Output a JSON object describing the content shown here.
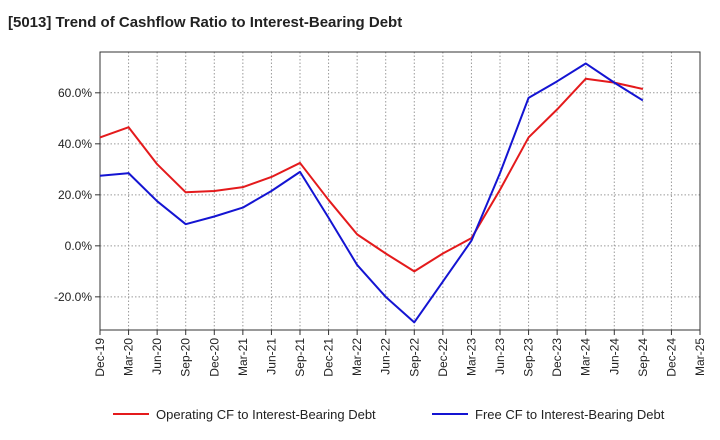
{
  "chart_data": {
    "type": "line",
    "title": "[5013]  Trend of Cashflow Ratio to Interest-Bearing Debt",
    "xlabel": "",
    "ylabel": "",
    "categories": [
      "Dec-19",
      "Mar-20",
      "Jun-20",
      "Sep-20",
      "Dec-20",
      "Mar-21",
      "Jun-21",
      "Sep-21",
      "Dec-21",
      "Mar-22",
      "Jun-22",
      "Sep-22",
      "Dec-22",
      "Mar-23",
      "Jun-23",
      "Sep-23",
      "Dec-23",
      "Mar-24",
      "Jun-24",
      "Sep-24",
      "Dec-24",
      "Mar-25"
    ],
    "ylim": [
      -33,
      76
    ],
    "yticks": [
      -20,
      0,
      20,
      40,
      60
    ],
    "ytick_labels": [
      "-20.0%",
      "0.0%",
      "20.0%",
      "40.0%",
      "60.0%"
    ],
    "grid": true,
    "legend_position": "bottom",
    "series": [
      {
        "name": "Operating CF to Interest-Bearing Debt",
        "color": "#e41a1c",
        "values": [
          42.5,
          46.5,
          32,
          21,
          21.5,
          23,
          27,
          32.5,
          18,
          4.5,
          -3,
          -10,
          -3,
          3,
          22,
          42.5,
          53.5,
          65.5,
          64,
          61.5,
          null,
          null
        ]
      },
      {
        "name": "Free CF to Interest-Bearing Debt",
        "color": "#1414d2",
        "values": [
          27.5,
          28.5,
          17.5,
          8.5,
          11.5,
          15,
          21.5,
          29,
          11,
          -7.5,
          -20,
          -30,
          -14,
          2,
          28.5,
          58,
          64.5,
          71.5,
          64,
          57,
          null,
          null
        ]
      }
    ]
  }
}
